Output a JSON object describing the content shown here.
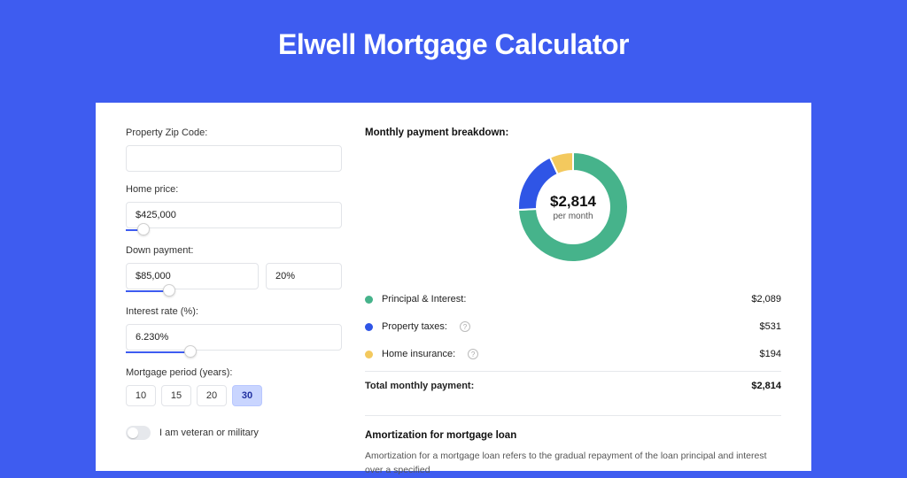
{
  "page": {
    "title": "Elwell Mortgage Calculator"
  },
  "colors": {
    "background": "#3e5cf0",
    "card_bg": "#ffffff",
    "input_border": "#e2e4e8",
    "slider_active": "#3e5cf0",
    "period_active_bg": "#c9d5ff",
    "divider": "#e6e8ec"
  },
  "form": {
    "zip": {
      "label": "Property Zip Code:",
      "value": ""
    },
    "home_price": {
      "label": "Home price:",
      "value": "$425,000",
      "slider_pct": 8
    },
    "down_payment": {
      "label": "Down payment:",
      "amount": "$85,000",
      "pct": "20%",
      "slider_pct": 20
    },
    "interest": {
      "label": "Interest rate (%):",
      "value": "6.230%",
      "slider_pct": 30
    },
    "period": {
      "label": "Mortgage period (years):",
      "options": [
        "10",
        "15",
        "20",
        "30"
      ],
      "selected": "30"
    },
    "veteran": {
      "label": "I am veteran or military",
      "on": false
    }
  },
  "breakdown": {
    "title": "Monthly payment breakdown:",
    "center_amount": "$2,814",
    "center_sub": "per month",
    "donut": {
      "type": "donut",
      "slices": [
        {
          "label": "Principal & Interest",
          "value": 2089,
          "color": "#46b38b",
          "pct": 74.2
        },
        {
          "label": "Property taxes",
          "value": 531,
          "color": "#2f55e6",
          "pct": 18.9
        },
        {
          "label": "Home insurance",
          "value": 194,
          "color": "#f3c95e",
          "pct": 6.9
        }
      ],
      "inner_radius": 41,
      "outer_radius": 62,
      "background": "#ffffff"
    },
    "rows": [
      {
        "label": "Principal & Interest:",
        "color": "#46b38b",
        "value": "$2,089",
        "info": false
      },
      {
        "label": "Property taxes:",
        "color": "#2f55e6",
        "value": "$531",
        "info": true
      },
      {
        "label": "Home insurance:",
        "color": "#f3c95e",
        "value": "$194",
        "info": true
      }
    ],
    "total": {
      "label": "Total monthly payment:",
      "value": "$2,814"
    }
  },
  "amortization": {
    "title": "Amortization for mortgage loan",
    "text": "Amortization for a mortgage loan refers to the gradual repayment of the loan principal and interest over a specified"
  }
}
